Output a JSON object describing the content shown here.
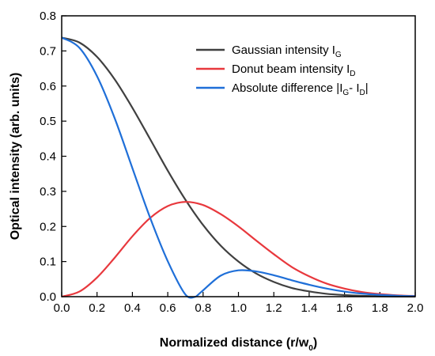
{
  "chart_data": {
    "type": "line",
    "xlabel": {
      "main": "Normalized distance (r/w",
      "sub": "0",
      "tail": ")"
    },
    "ylabel": "Optical intensity (arb. units)",
    "xlim": [
      0,
      2.0
    ],
    "ylim": [
      0,
      0.8
    ],
    "xticks": [
      "0.0",
      "0.2",
      "0.4",
      "0.6",
      "0.8",
      "1.0",
      "1.2",
      "1.4",
      "1.6",
      "1.8",
      "2.0"
    ],
    "yticks": [
      "0.0",
      "0.1",
      "0.2",
      "0.3",
      "0.4",
      "0.5",
      "0.6",
      "0.7",
      "0.8"
    ],
    "grid": false,
    "legend_position": "top-right",
    "series": [
      {
        "name": "Gaussian intensity I",
        "name_sub": "G",
        "name_tail": "",
        "color": "#404040",
        "x": [
          0.0,
          0.1,
          0.2,
          0.3,
          0.4,
          0.5,
          0.6,
          0.7,
          0.8,
          0.9,
          1.0,
          1.1,
          1.2,
          1.3,
          1.4,
          1.5,
          1.6,
          1.7,
          1.8,
          1.9,
          2.0
        ],
        "y": [
          0.738,
          0.724,
          0.683,
          0.619,
          0.538,
          0.449,
          0.359,
          0.276,
          0.204,
          0.145,
          0.1,
          0.066,
          0.042,
          0.025,
          0.015,
          0.008,
          0.0045,
          0.0023,
          0.0011,
          0.0005,
          0.0002
        ]
      },
      {
        "name": "Donut beam intensity I",
        "name_sub": "D",
        "name_tail": "",
        "color": "#e8383d",
        "x": [
          0.0,
          0.1,
          0.2,
          0.3,
          0.4,
          0.5,
          0.6,
          0.7,
          0.8,
          0.9,
          1.0,
          1.1,
          1.2,
          1.3,
          1.4,
          1.5,
          1.6,
          1.7,
          1.8,
          1.9,
          2.0
        ],
        "y": [
          0.0,
          0.0145,
          0.0546,
          0.111,
          0.172,
          0.224,
          0.258,
          0.27,
          0.261,
          0.235,
          0.2,
          0.16,
          0.121,
          0.085,
          0.058,
          0.037,
          0.023,
          0.013,
          0.0073,
          0.0038,
          0.0019
        ]
      },
      {
        "name": "Absolute difference |I",
        "name_sub": "G",
        "name_tail": "- I",
        "name_sub2": "D",
        "name_tail2": "|",
        "color": "#1f6fd8",
        "x": [
          0.0,
          0.1,
          0.2,
          0.3,
          0.4,
          0.5,
          0.6,
          0.7,
          0.76,
          0.8,
          0.9,
          1.0,
          1.1,
          1.2,
          1.3,
          1.4,
          1.5,
          1.6,
          1.7,
          1.8,
          1.9,
          2.0
        ],
        "y": [
          0.738,
          0.709,
          0.628,
          0.508,
          0.366,
          0.225,
          0.101,
          0.006,
          0.0,
          0.018,
          0.06,
          0.075,
          0.072,
          0.061,
          0.047,
          0.034,
          0.023,
          0.0145,
          0.0087,
          0.005,
          0.0027,
          0.0014
        ]
      }
    ]
  }
}
